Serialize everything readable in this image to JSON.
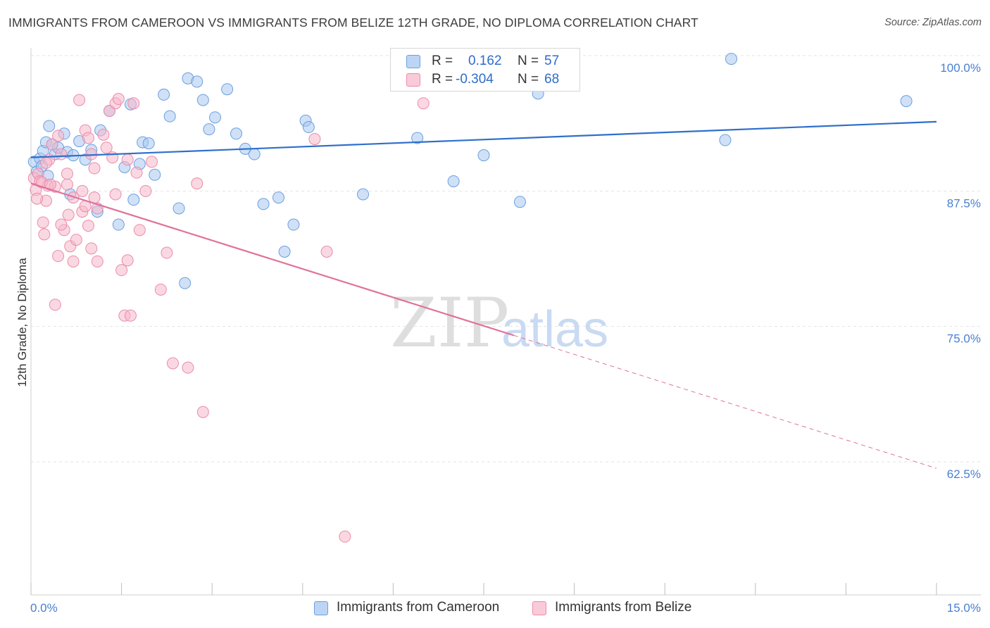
{
  "title": "IMMIGRANTS FROM CAMEROON VS IMMIGRANTS FROM BELIZE 12TH GRADE, NO DIPLOMA CORRELATION CHART",
  "source": "Source: ZipAtlas.com",
  "watermark": {
    "zip": "ZIP",
    "atlas": "atlas"
  },
  "colors": {
    "blue_fill": "#a9c8f0",
    "blue_stroke": "#6b9fe0",
    "blue_line": "#2f6fcc",
    "pink_fill": "#f6b8ca",
    "pink_stroke": "#ec8bab",
    "pink_line": "#e0729b",
    "tick_text": "#4a7fd0",
    "grid": "#e3e3e3"
  },
  "legend": {
    "rows": [
      {
        "r_label": "R =",
        "r_value": "0.162",
        "n_label": "N =",
        "n_value": "57"
      },
      {
        "r_label": "R =",
        "r_value": "-0.304",
        "n_label": "N =",
        "n_value": "68"
      }
    ]
  },
  "bottom_legend": [
    "Immigrants from Cameroon",
    "Immigrants from Belize"
  ],
  "chart_data": {
    "type": "scatter",
    "title": "IMMIGRANTS FROM CAMEROON VS IMMIGRANTS FROM BELIZE 12TH GRADE, NO DIPLOMA CORRELATION CHART",
    "xlabel": "",
    "ylabel": "12th Grade, No Diploma",
    "xlim": [
      0,
      15
    ],
    "ylim": [
      52.5,
      101.5
    ],
    "x_tick_labels": [
      "0.0%",
      "15.0%"
    ],
    "y_ticks": [
      62.5,
      75.0,
      87.5,
      100.0
    ],
    "y_tick_labels": [
      "62.5%",
      "75.0%",
      "87.5%",
      "100.0%"
    ],
    "grid": true,
    "legend_position": "top-center",
    "series": [
      {
        "name": "Immigrants from Cameroon",
        "color": "blue",
        "R": 0.162,
        "N": 57,
        "trend": {
          "x": [
            0,
            15
          ],
          "y": [
            90.6,
            93.9
          ],
          "dashed_from": null
        },
        "points": [
          [
            0.05,
            90.2
          ],
          [
            0.1,
            89.3
          ],
          [
            0.15,
            90.5
          ],
          [
            0.2,
            91.2
          ],
          [
            0.25,
            92.0
          ],
          [
            0.3,
            93.5
          ],
          [
            0.35,
            91.8
          ],
          [
            0.4,
            90.9
          ],
          [
            0.45,
            91.5
          ],
          [
            0.55,
            92.8
          ],
          [
            0.6,
            91.1
          ],
          [
            0.65,
            87.2
          ],
          [
            0.7,
            90.8
          ],
          [
            0.8,
            92.1
          ],
          [
            0.9,
            90.4
          ],
          [
            1.0,
            91.3
          ],
          [
            1.15,
            93.1
          ],
          [
            1.3,
            94.9
          ],
          [
            1.45,
            84.4
          ],
          [
            1.55,
            89.7
          ],
          [
            1.65,
            95.5
          ],
          [
            1.7,
            86.7
          ],
          [
            1.8,
            90.0
          ],
          [
            1.85,
            92.0
          ],
          [
            1.95,
            91.9
          ],
          [
            2.05,
            89.0
          ],
          [
            2.2,
            96.4
          ],
          [
            2.3,
            94.4
          ],
          [
            2.45,
            85.9
          ],
          [
            2.6,
            97.9
          ],
          [
            2.75,
            97.6
          ],
          [
            2.85,
            95.9
          ],
          [
            2.95,
            93.2
          ],
          [
            3.05,
            94.3
          ],
          [
            3.25,
            96.9
          ],
          [
            3.4,
            92.8
          ],
          [
            3.55,
            91.4
          ],
          [
            3.7,
            90.9
          ],
          [
            3.85,
            86.3
          ],
          [
            4.1,
            86.9
          ],
          [
            4.2,
            81.9
          ],
          [
            4.35,
            84.4
          ],
          [
            4.55,
            94.0
          ],
          [
            4.6,
            93.4
          ],
          [
            5.5,
            87.2
          ],
          [
            6.4,
            92.4
          ],
          [
            7.0,
            88.4
          ],
          [
            7.5,
            90.8
          ],
          [
            8.1,
            86.5
          ],
          [
            8.4,
            96.5
          ],
          [
            11.5,
            92.2
          ],
          [
            11.6,
            99.7
          ],
          [
            14.5,
            95.8
          ],
          [
            0.18,
            89.8
          ],
          [
            0.28,
            88.9
          ],
          [
            1.1,
            85.6
          ],
          [
            2.55,
            79.0
          ]
        ]
      },
      {
        "name": "Immigrants from Belize",
        "color": "pink",
        "R": -0.304,
        "N": 68,
        "trend": {
          "x": [
            0,
            15
          ],
          "y": [
            88.2,
            61.9
          ],
          "dashed_from": 8.0
        },
        "points": [
          [
            0.05,
            88.7
          ],
          [
            0.08,
            87.6
          ],
          [
            0.12,
            89.1
          ],
          [
            0.15,
            88.4
          ],
          [
            0.2,
            84.6
          ],
          [
            0.22,
            83.5
          ],
          [
            0.25,
            86.6
          ],
          [
            0.28,
            88.0
          ],
          [
            0.3,
            90.4
          ],
          [
            0.35,
            91.8
          ],
          [
            0.4,
            77.0
          ],
          [
            0.45,
            92.6
          ],
          [
            0.5,
            90.9
          ],
          [
            0.55,
            83.9
          ],
          [
            0.6,
            88.1
          ],
          [
            0.65,
            82.4
          ],
          [
            0.7,
            86.9
          ],
          [
            0.75,
            83.0
          ],
          [
            0.8,
            95.9
          ],
          [
            0.85,
            85.6
          ],
          [
            0.9,
            93.1
          ],
          [
            0.95,
            92.4
          ],
          [
            1.0,
            82.2
          ],
          [
            1.05,
            89.6
          ],
          [
            1.1,
            85.9
          ],
          [
            1.2,
            92.7
          ],
          [
            1.3,
            94.9
          ],
          [
            1.35,
            90.6
          ],
          [
            1.4,
            87.2
          ],
          [
            1.5,
            80.2
          ],
          [
            1.55,
            76.0
          ],
          [
            1.6,
            90.4
          ],
          [
            1.65,
            76.0
          ],
          [
            1.7,
            95.6
          ],
          [
            1.8,
            83.9
          ],
          [
            1.9,
            87.5
          ],
          [
            2.0,
            90.2
          ],
          [
            2.15,
            78.4
          ],
          [
            2.25,
            81.8
          ],
          [
            2.35,
            71.6
          ],
          [
            2.6,
            71.2
          ],
          [
            2.75,
            88.2
          ],
          [
            2.85,
            67.1
          ],
          [
            4.7,
            92.3
          ],
          [
            4.9,
            81.9
          ],
          [
            5.2,
            55.6
          ],
          [
            6.5,
            95.6
          ],
          [
            0.18,
            88.3
          ],
          [
            0.4,
            87.9
          ],
          [
            0.5,
            84.4
          ],
          [
            0.6,
            89.1
          ],
          [
            0.7,
            81.0
          ],
          [
            0.85,
            87.5
          ],
          [
            1.0,
            90.9
          ],
          [
            1.1,
            81.0
          ],
          [
            1.25,
            91.5
          ],
          [
            1.4,
            95.6
          ],
          [
            1.6,
            81.1
          ],
          [
            1.75,
            89.2
          ],
          [
            0.32,
            88.1
          ],
          [
            0.9,
            86.1
          ],
          [
            1.05,
            86.9
          ],
          [
            0.45,
            81.5
          ],
          [
            0.62,
            85.3
          ],
          [
            0.95,
            84.3
          ],
          [
            1.45,
            96.0
          ],
          [
            0.1,
            86.8
          ],
          [
            0.25,
            90.1
          ]
        ]
      }
    ]
  }
}
